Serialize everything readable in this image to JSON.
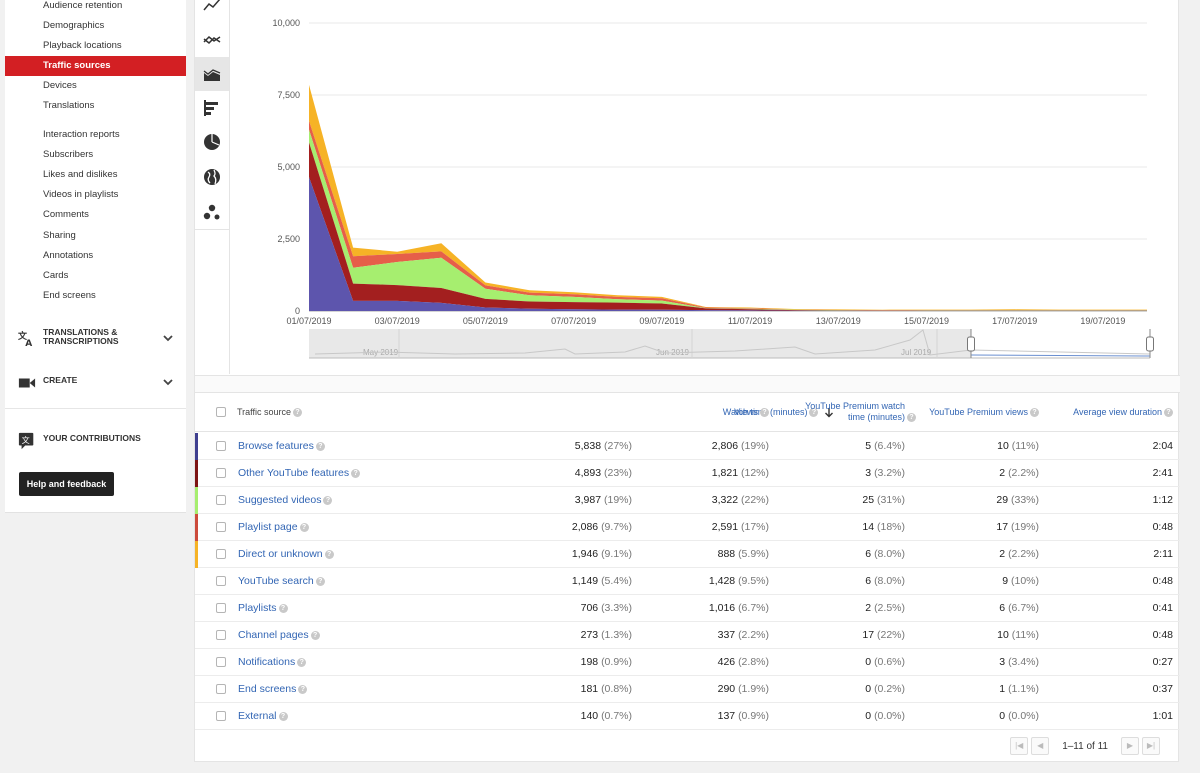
{
  "sidebar": {
    "items": [
      {
        "label": "Audience retention",
        "active": false
      },
      {
        "label": "Demographics",
        "active": false
      },
      {
        "label": "Playback locations",
        "active": false
      },
      {
        "label": "Traffic sources",
        "active": true
      },
      {
        "label": "Devices",
        "active": false
      },
      {
        "label": "Translations",
        "active": false
      },
      {
        "label": "Interaction reports",
        "active": false
      },
      {
        "label": "Subscribers",
        "active": false
      },
      {
        "label": "Likes and dislikes",
        "active": false
      },
      {
        "label": "Videos in playlists",
        "active": false
      },
      {
        "label": "Comments",
        "active": false
      },
      {
        "label": "Sharing",
        "active": false
      },
      {
        "label": "Annotations",
        "active": false
      },
      {
        "label": "Cards",
        "active": false
      },
      {
        "label": "End screens",
        "active": false
      }
    ],
    "translations_line1": "TRANSLATIONS &",
    "translations_line2": "TRANSCRIPTIONS",
    "create": "CREATE",
    "contributions": "YOUR CONTRIBUTIONS",
    "help_button": "Help and feedback"
  },
  "toolbar": {
    "icons": [
      "line-chart-icon",
      "multi-line-chart-icon",
      "stacked-area-chart-icon",
      "bar-chart-icon",
      "pie-chart-icon",
      "globe-icon",
      "bubble-chart-icon"
    ],
    "active": "stacked-area-chart-icon"
  },
  "chart_data": {
    "type": "area",
    "stacked": true,
    "x": [
      "01/07/2019",
      "02/07/2019",
      "03/07/2019",
      "04/07/2019",
      "05/07/2019",
      "06/07/2019",
      "07/07/2019",
      "08/07/2019",
      "09/07/2019",
      "10/07/2019",
      "11/07/2019",
      "12/07/2019",
      "13/07/2019",
      "14/07/2019",
      "15/07/2019",
      "16/07/2019",
      "17/07/2019",
      "18/07/2019",
      "19/07/2019",
      "20/07/2019"
    ],
    "xticks": [
      "01/07/2019",
      "03/07/2019",
      "05/07/2019",
      "07/07/2019",
      "09/07/2019",
      "11/07/2019",
      "13/07/2019",
      "15/07/2019",
      "17/07/2019",
      "19/07/2019"
    ],
    "yticks": [
      "0",
      "2,500",
      "5,000",
      "7,500",
      "10,000"
    ],
    "ylim": [
      0,
      10000
    ],
    "grid": true,
    "series": [
      {
        "name": "Browse features",
        "color": "#5d55ad",
        "values": [
          4650,
          350,
          350,
          280,
          120,
          80,
          60,
          50,
          40,
          30,
          20,
          10,
          5,
          5,
          5,
          5,
          5,
          5,
          5,
          5
        ]
      },
      {
        "name": "Other YouTube features",
        "color": "#a31f1f",
        "values": [
          1200,
          600,
          550,
          520,
          300,
          250,
          250,
          240,
          220,
          60,
          40,
          20,
          10,
          5,
          5,
          5,
          5,
          5,
          5,
          5
        ]
      },
      {
        "name": "Suggested videos",
        "color": "#a6ee6f",
        "values": [
          450,
          550,
          800,
          1050,
          350,
          220,
          180,
          120,
          100,
          10,
          20,
          10,
          10,
          5,
          10,
          10,
          10,
          10,
          10,
          10
        ]
      },
      {
        "name": "Playlist page",
        "color": "#e65f49",
        "values": [
          300,
          400,
          280,
          220,
          120,
          90,
          90,
          80,
          80,
          20,
          20,
          10,
          10,
          10,
          10,
          10,
          10,
          10,
          10,
          10
        ]
      },
      {
        "name": "Direct or unknown",
        "color": "#f6b326",
        "values": [
          1250,
          300,
          80,
          280,
          100,
          80,
          70,
          60,
          50,
          20,
          20,
          20,
          20,
          20,
          20,
          20,
          30,
          20,
          20,
          20
        ]
      }
    ],
    "navigator_labels": [
      "May 2019",
      "Jun 2019",
      "Jul 2019"
    ]
  },
  "table": {
    "headers": {
      "source": "Traffic source",
      "watch_time": "Watch time (minutes)",
      "views": "Views",
      "premium_watch_line1": "YouTube Premium watch",
      "premium_watch_line2": "time (minutes)",
      "premium_views": "YouTube Premium views",
      "avg_duration": "Average view duration"
    },
    "rows": [
      {
        "source": "Browse features",
        "color": "#3f3f8f",
        "wt": "5,838",
        "wt_pct": "(27%)",
        "views": "2,806",
        "views_pct": "(19%)",
        "pwt": "5",
        "pwt_pct": "(6.4%)",
        "pv": "10",
        "pv_pct": "(11%)",
        "avd": "2:04"
      },
      {
        "source": "Other YouTube features",
        "color": "#7d1414",
        "wt": "4,893",
        "wt_pct": "(23%)",
        "views": "1,821",
        "views_pct": "(12%)",
        "pwt": "3",
        "pwt_pct": "(3.2%)",
        "pv": "2",
        "pv_pct": "(2.2%)",
        "avd": "2:41"
      },
      {
        "source": "Suggested videos",
        "color": "#a6ee6f",
        "wt": "3,987",
        "wt_pct": "(19%)",
        "views": "3,322",
        "views_pct": "(22%)",
        "pwt": "25",
        "pwt_pct": "(31%)",
        "pv": "29",
        "pv_pct": "(33%)",
        "avd": "1:12"
      },
      {
        "source": "Playlist page",
        "color": "#cc4b3c",
        "wt": "2,086",
        "wt_pct": "(9.7%)",
        "views": "2,591",
        "views_pct": "(17%)",
        "pwt": "14",
        "pwt_pct": "(18%)",
        "pv": "17",
        "pv_pct": "(19%)",
        "avd": "0:48"
      },
      {
        "source": "Direct or unknown",
        "color": "#f6b326",
        "wt": "1,946",
        "wt_pct": "(9.1%)",
        "views": "888",
        "views_pct": "(5.9%)",
        "pwt": "6",
        "pwt_pct": "(8.0%)",
        "pv": "2",
        "pv_pct": "(2.2%)",
        "avd": "2:11"
      },
      {
        "source": "YouTube search",
        "color": "",
        "wt": "1,149",
        "wt_pct": "(5.4%)",
        "views": "1,428",
        "views_pct": "(9.5%)",
        "pwt": "6",
        "pwt_pct": "(8.0%)",
        "pv": "9",
        "pv_pct": "(10%)",
        "avd": "0:48"
      },
      {
        "source": "Playlists",
        "color": "",
        "wt": "706",
        "wt_pct": "(3.3%)",
        "views": "1,016",
        "views_pct": "(6.7%)",
        "pwt": "2",
        "pwt_pct": "(2.5%)",
        "pv": "6",
        "pv_pct": "(6.7%)",
        "avd": "0:41"
      },
      {
        "source": "Channel pages",
        "color": "",
        "wt": "273",
        "wt_pct": "(1.3%)",
        "views": "337",
        "views_pct": "(2.2%)",
        "pwt": "17",
        "pwt_pct": "(22%)",
        "pv": "10",
        "pv_pct": "(11%)",
        "avd": "0:48"
      },
      {
        "source": "Notifications",
        "color": "",
        "wt": "198",
        "wt_pct": "(0.9%)",
        "views": "426",
        "views_pct": "(2.8%)",
        "pwt": "0",
        "pwt_pct": "(0.6%)",
        "pv": "3",
        "pv_pct": "(3.4%)",
        "avd": "0:27"
      },
      {
        "source": "End screens",
        "color": "",
        "wt": "181",
        "wt_pct": "(0.8%)",
        "views": "290",
        "views_pct": "(1.9%)",
        "pwt": "0",
        "pwt_pct": "(0.2%)",
        "pv": "1",
        "pv_pct": "(1.1%)",
        "avd": "0:37"
      },
      {
        "source": "External",
        "color": "",
        "wt": "140",
        "wt_pct": "(0.7%)",
        "views": "137",
        "views_pct": "(0.9%)",
        "pwt": "0",
        "pwt_pct": "(0.0%)",
        "pv": "0",
        "pv_pct": "(0.0%)",
        "avd": "1:01"
      }
    ]
  },
  "pager": {
    "range": "1–11",
    "of": "of",
    "total": "11"
  }
}
